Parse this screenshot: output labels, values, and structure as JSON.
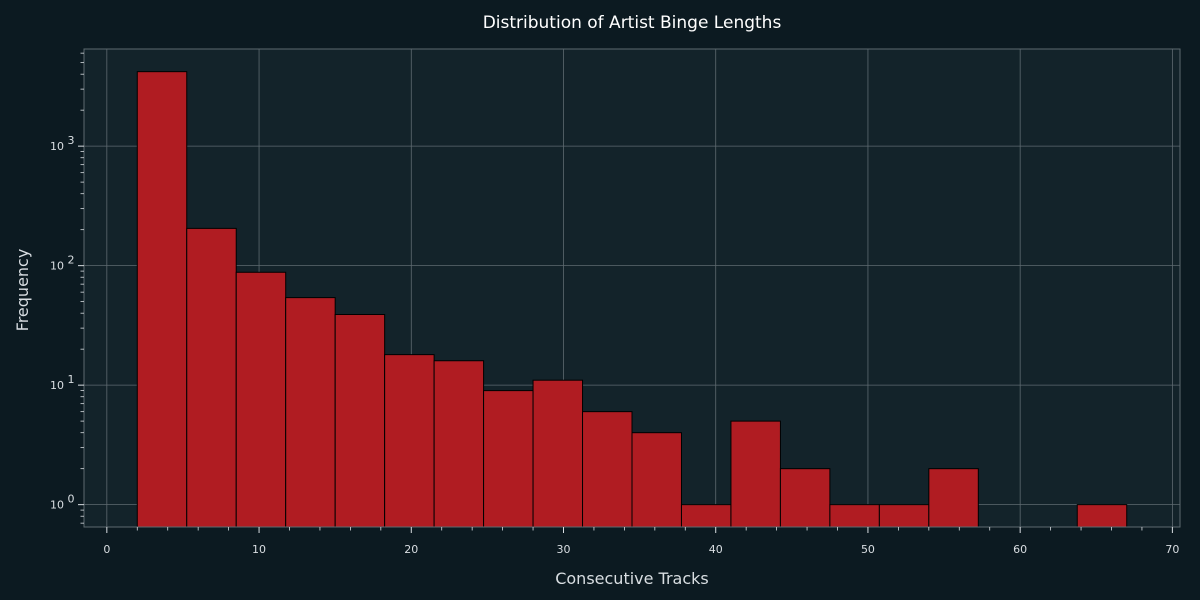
{
  "chart_data": {
    "type": "bar",
    "title": "Distribution of Artist Binge Lengths",
    "xlabel": "Consecutive Tracks",
    "ylabel": "Frequency",
    "y_scale": "log",
    "grid": true,
    "xlim": [
      -1.5,
      70.5
    ],
    "ylim": [
      0.65,
      6500
    ],
    "x_ticks": [
      0,
      10,
      20,
      30,
      40,
      50,
      60,
      70
    ],
    "y_ticks": [
      1,
      10,
      100,
      1000
    ],
    "y_tick_labels": [
      {
        "base": "10",
        "exp": "0"
      },
      {
        "base": "10",
        "exp": "1"
      },
      {
        "base": "10",
        "exp": "2"
      },
      {
        "base": "10",
        "exp": "3"
      }
    ],
    "bin_edges": [
      2,
      5.25,
      8.5,
      11.75,
      15,
      18.25,
      21.5,
      24.75,
      28,
      31.25,
      34.5,
      37.75,
      41,
      44.25,
      47.5,
      50.75,
      54,
      57.25,
      60.5,
      63.75,
      67
    ],
    "values": [
      4200,
      205,
      88,
      54,
      39,
      18,
      16,
      9,
      11,
      6,
      4,
      1,
      5,
      2,
      1,
      1,
      2,
      0,
      0,
      1
    ],
    "colors": {
      "background": "#0c1a21",
      "plot_area": "#13232a",
      "bar_fill": "#b01c22",
      "bar_edge": "#000000",
      "grid": "#5e6a70",
      "spine": "#5e6a70",
      "text": "#d9dee2"
    }
  }
}
